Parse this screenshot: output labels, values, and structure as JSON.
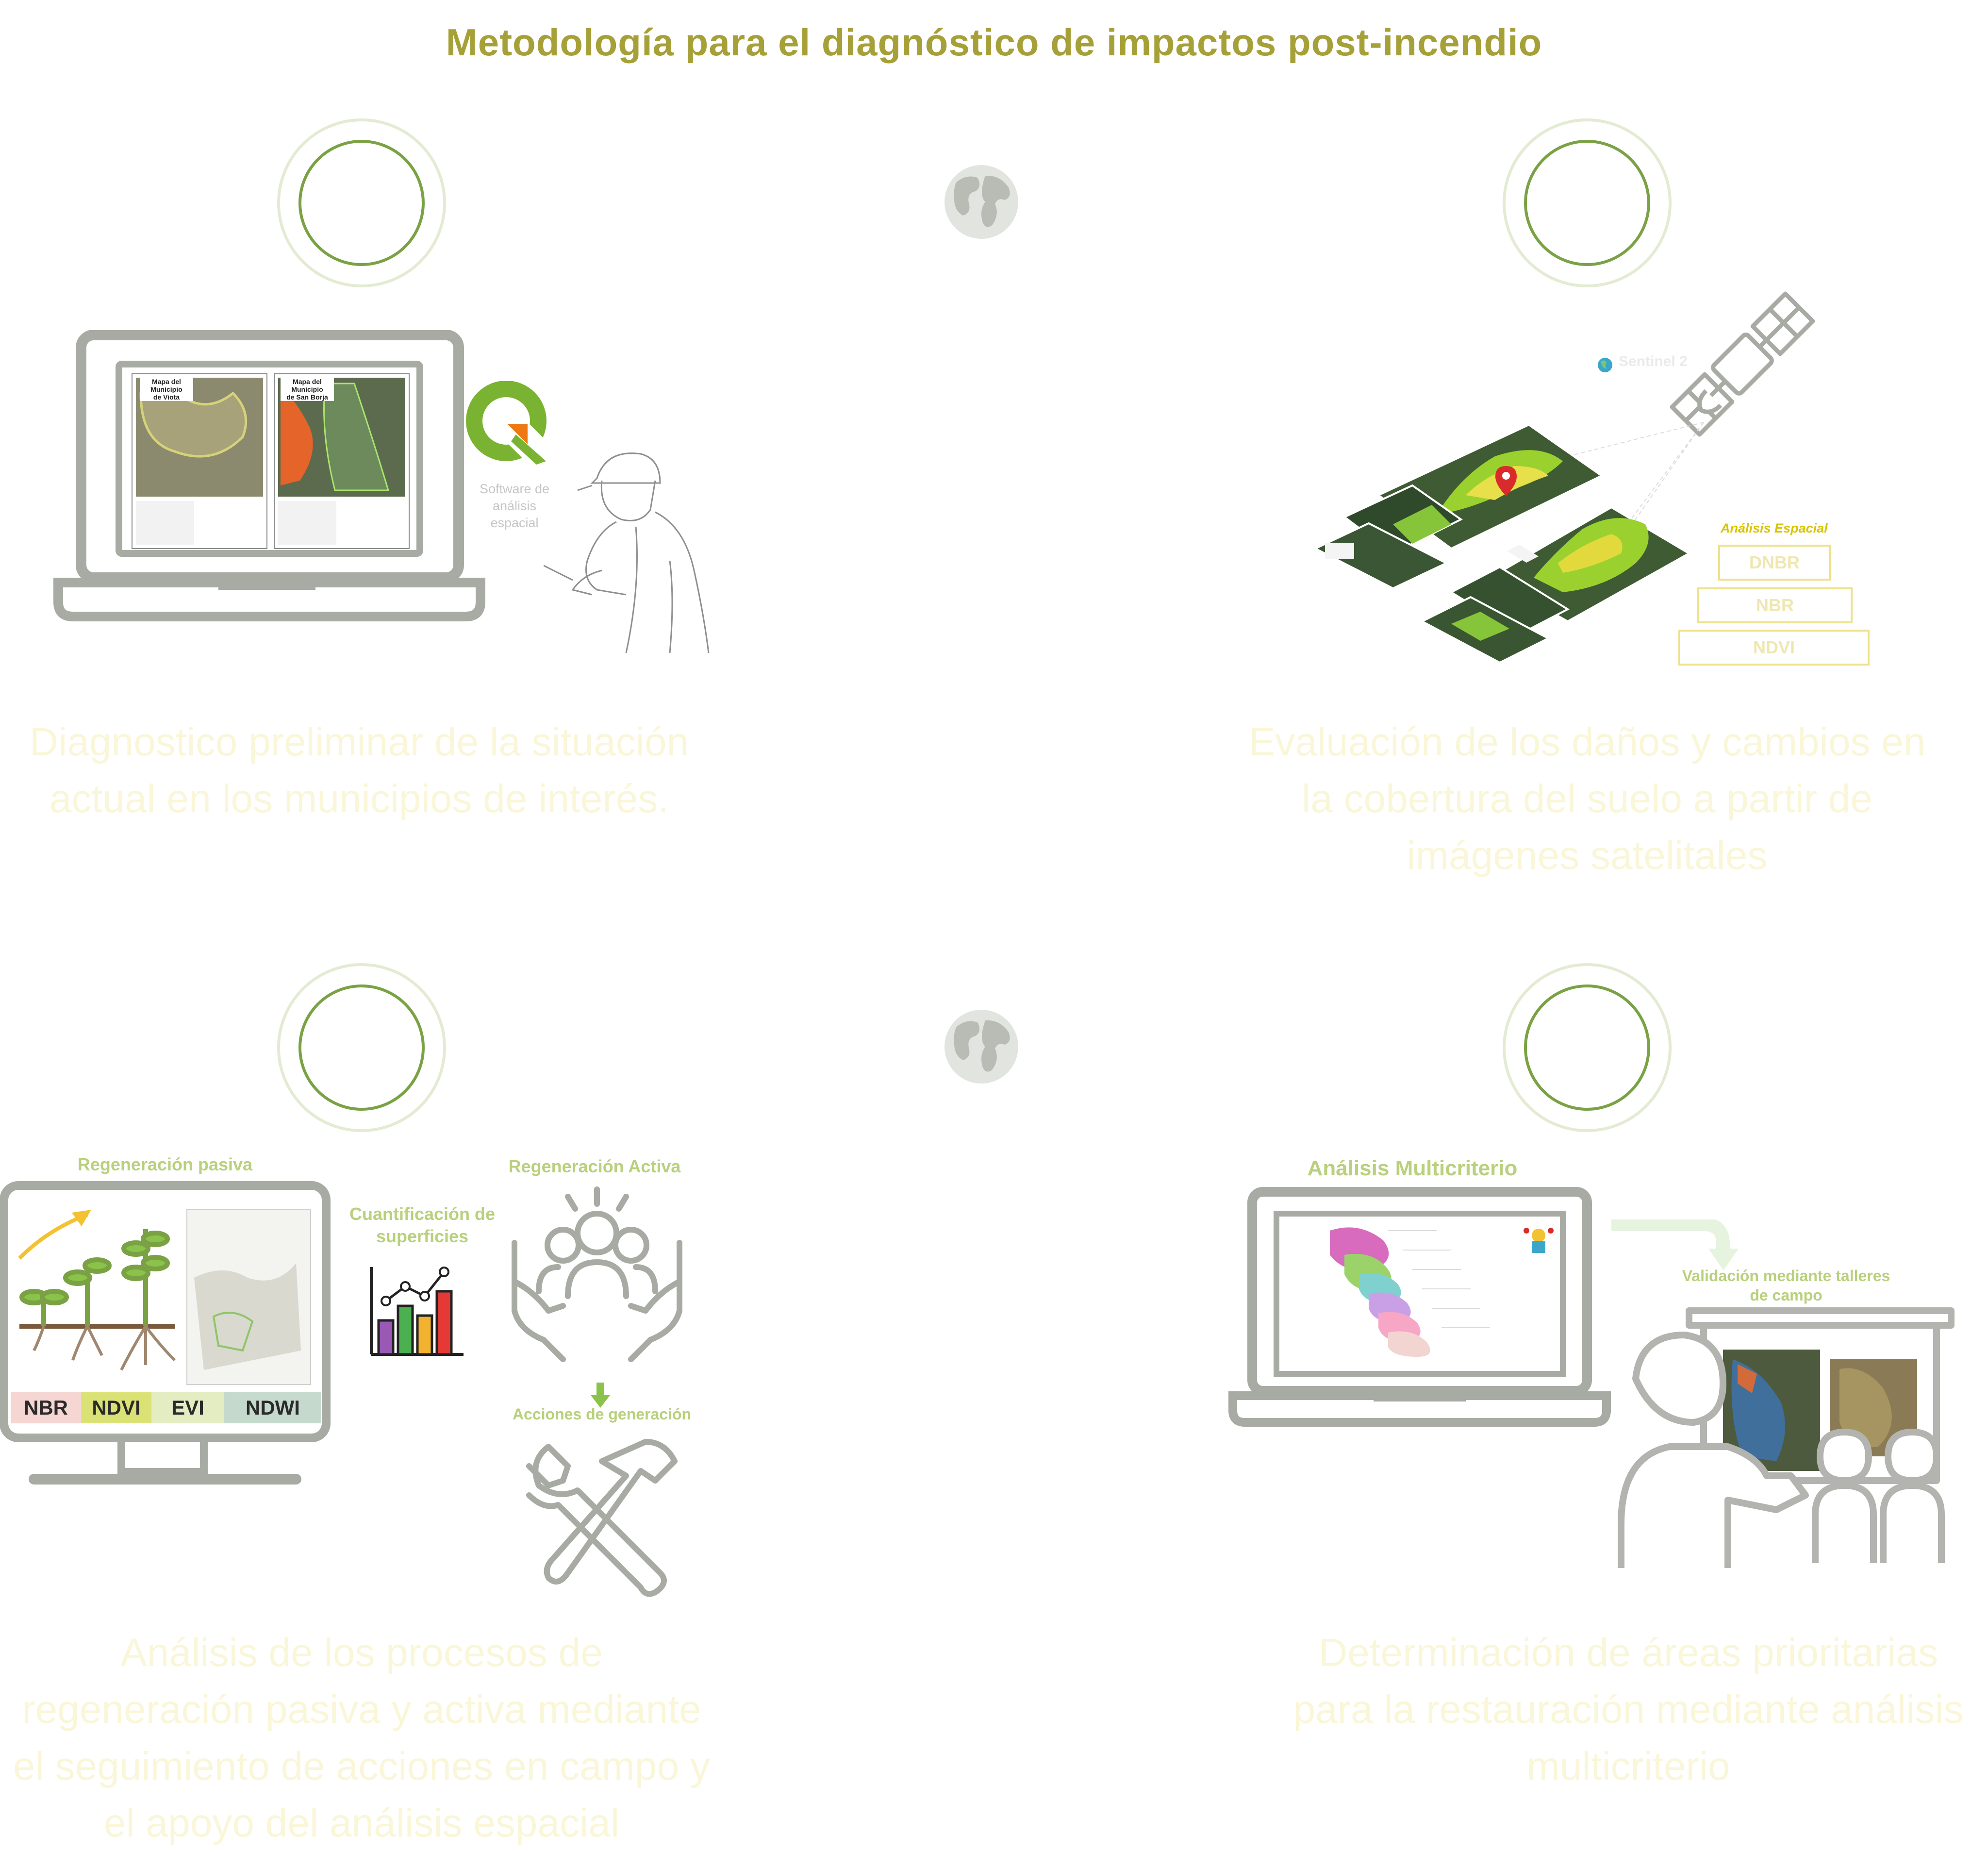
{
  "title": "Metodología para el diagnóstico de impactos post-incendio",
  "steps": [
    {
      "description": "Diagnostico preliminar de la situación actual en los municipios de interés.",
      "lines": [
        "Diagnostico preliminar de la situación",
        "actual en los municipios de interés."
      ]
    },
    {
      "description": "Evaluación de los daños y cambios en la cobertura del suelo a partir de imágenes satelitales",
      "lines": [
        "Evaluación de los daños y cambios en",
        "la cobertura del suelo a partir de",
        "imágenes satelitales"
      ]
    },
    {
      "description": "Análisis de los procesos de regeneración pasiva y activa mediante el seguimiento de acciones en campo y el apoyo del análisis espacial",
      "lines": [
        "Análisis de los procesos de",
        "regeneración pasiva y activa mediante",
        "el seguimiento de acciones en campo y",
        "el apoyo del análisis espacial"
      ]
    },
    {
      "description": "Determinación de áreas prioritarias para la restauración mediante análisis multicriterio",
      "lines": [
        "Determinación de áreas prioritarias",
        "para la restauración mediante análisis",
        "multicriterio"
      ]
    }
  ],
  "panel1": {
    "software_label_lines": [
      "Software de",
      "análisis",
      "espacial"
    ],
    "map_left_title": [
      "Mapa del Municipio",
      "de Viota"
    ],
    "map_right_title": [
      "Mapa del Municipio",
      "de San Borja"
    ]
  },
  "panel2": {
    "satellite_label": "Sentinel 2",
    "analysis_label": "Análisis Espacial",
    "indices": [
      "DNBR",
      "NBR",
      "NDVI"
    ]
  },
  "panel3": {
    "passive_label": "Regeneración pasiva",
    "active_label": "Regeneración Activa",
    "quantify_label_lines": [
      "Cuantificación de",
      "superficies"
    ],
    "actions_label": "Acciones de generación",
    "indices": [
      "NBR",
      "NDVI",
      "EVI",
      "NDWI"
    ],
    "index_colors": [
      "#f6d6d3",
      "#dbe275",
      "#e4edc2",
      "#c5d9cc"
    ]
  },
  "panel4": {
    "multicriteria_label": "Análisis Multicriterio",
    "validation_label_lines": [
      "Validación mediante talleres",
      "de campo"
    ]
  },
  "colors": {
    "title": "#a6a038",
    "ring_inner": "#7aa244",
    "ring_outer": "#e3ebd3",
    "description": "#faf6d8",
    "label_green": "#b9d07c",
    "device_gray": "#a8aaa4"
  }
}
